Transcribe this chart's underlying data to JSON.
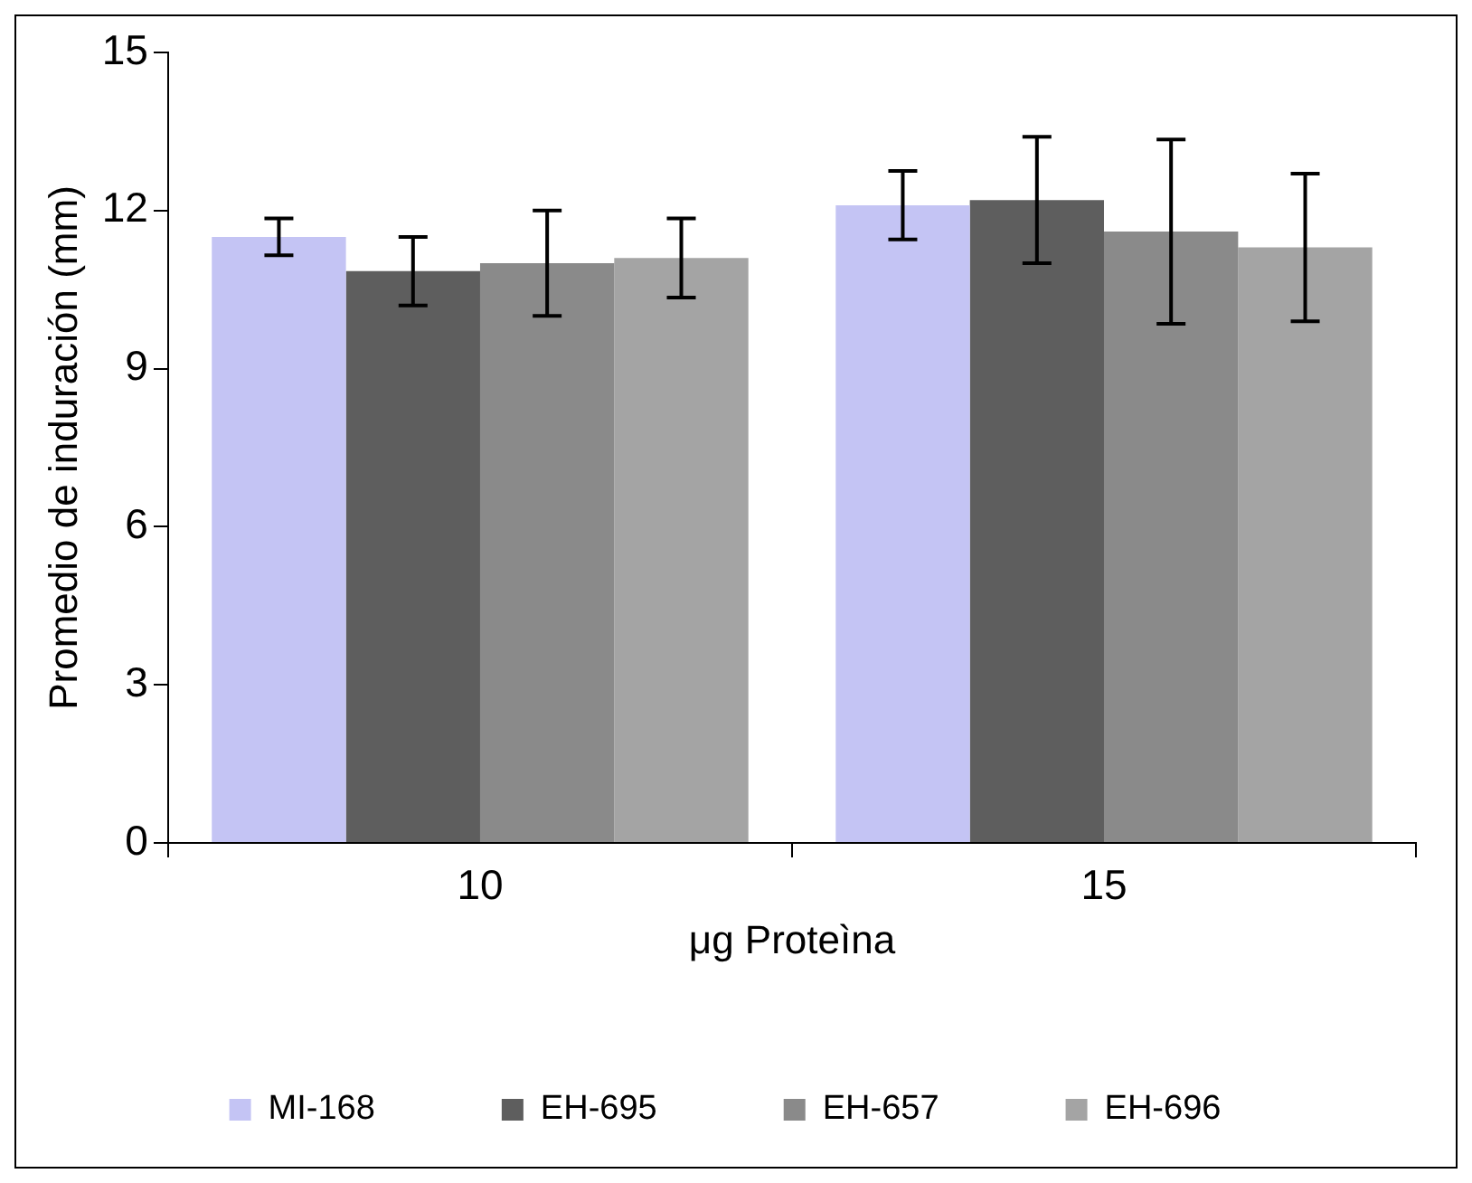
{
  "chart_data": {
    "type": "bar",
    "xlabel": "μg Proteìna",
    "ylabel": "Promedio de induración (mm)",
    "categories": [
      "10",
      "15"
    ],
    "series": [
      {
        "name": "MI-168",
        "color": "#c4c4f4",
        "values": [
          11.5,
          12.1
        ],
        "errors": [
          0.35,
          0.65
        ]
      },
      {
        "name": "EH-695",
        "color": "#5e5e5e",
        "values": [
          10.85,
          12.2
        ],
        "errors": [
          0.65,
          1.2
        ]
      },
      {
        "name": "EH-657",
        "color": "#8a8a8a",
        "values": [
          11.0,
          11.6
        ],
        "errors": [
          1.0,
          1.75
        ]
      },
      {
        "name": "EH-696",
        "color": "#a4a4a4",
        "values": [
          11.1,
          11.3
        ],
        "errors": [
          0.75,
          1.4
        ]
      }
    ],
    "ylim": [
      0,
      15
    ],
    "yticks": [
      0,
      3,
      6,
      9,
      12,
      15
    ],
    "grid": false,
    "legend": "bottom"
  }
}
